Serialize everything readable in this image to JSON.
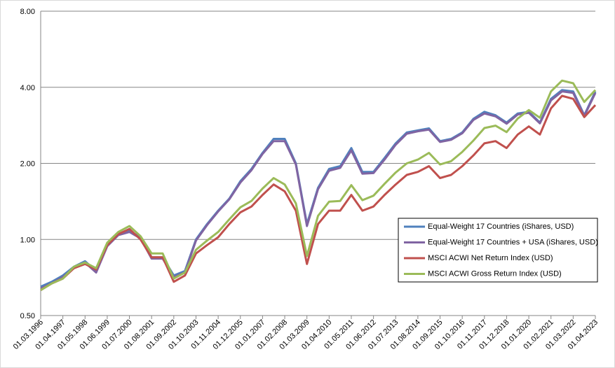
{
  "chart_data": {
    "type": "line",
    "log_scale": true,
    "grid": true,
    "legend_position": "center right",
    "categories": [
      "01.03.1996",
      null,
      "01.04.1997",
      null,
      "01.05.1998",
      null,
      "01.06.1999",
      null,
      "01.07.2000",
      null,
      "01.08.2001",
      null,
      "01.09.2002",
      null,
      "01.10.2003",
      null,
      "01.11.2004",
      null,
      "01.12.2005",
      null,
      "01.01.2007",
      null,
      "01.02.2008",
      null,
      "01.03.2009",
      null,
      "01.04.2010",
      null,
      "01.05.2011",
      null,
      "01.06.2012",
      null,
      "01.07.2013",
      null,
      "01.08.2014",
      null,
      "01.09.2015",
      null,
      "01.10.2016",
      null,
      "01.11.2017",
      null,
      "01.12.2018",
      null,
      "01.01.2020",
      null,
      "01.02.2021",
      null,
      "01.03.2022",
      null,
      "01.04.2023"
    ],
    "ylim": [
      0.5,
      8
    ],
    "yticks": [
      {
        "value": 0.5,
        "label": "0.50"
      },
      {
        "value": 1,
        "label": "1.00"
      },
      {
        "value": 2,
        "label": "2.00"
      },
      {
        "value": 4,
        "label": "4.00"
      },
      {
        "value": 8,
        "label": "8.00"
      }
    ],
    "series": [
      {
        "name": "Equal-Weight 17 Countries  (iShares, USD)",
        "color": "#4f81bd",
        "values": [
          0.65,
          0.68,
          0.72,
          0.78,
          0.82,
          0.75,
          0.95,
          1.05,
          1.08,
          1.02,
          0.85,
          0.85,
          0.72,
          0.75,
          1.0,
          1.15,
          1.3,
          1.45,
          1.7,
          1.9,
          2.2,
          2.5,
          2.5,
          2.0,
          1.15,
          1.6,
          1.9,
          1.95,
          2.3,
          1.85,
          1.85,
          2.1,
          2.4,
          2.65,
          2.7,
          2.75,
          2.45,
          2.5,
          2.65,
          3.0,
          3.2,
          3.1,
          2.9,
          3.15,
          3.2,
          2.9,
          3.6,
          3.9,
          3.85,
          3.1,
          3.85
        ]
      },
      {
        "name": "Equal-Weight 17 Countries  + USA (iShares, USD)",
        "color": "#8064a2",
        "values": [
          0.64,
          0.67,
          0.71,
          0.77,
          0.81,
          0.74,
          0.94,
          1.04,
          1.07,
          1.01,
          0.84,
          0.84,
          0.71,
          0.74,
          0.99,
          1.14,
          1.29,
          1.44,
          1.68,
          1.88,
          2.18,
          2.45,
          2.45,
          1.98,
          1.13,
          1.58,
          1.87,
          1.92,
          2.25,
          1.82,
          1.83,
          2.07,
          2.37,
          2.62,
          2.68,
          2.72,
          2.43,
          2.48,
          2.63,
          2.97,
          3.15,
          3.07,
          2.87,
          3.12,
          3.17,
          2.88,
          3.55,
          3.85,
          3.8,
          3.08,
          3.8
        ]
      },
      {
        "name": "MSCI ACWI Net Return Index (USD)",
        "color": "#c0504d",
        "values": [
          0.63,
          0.67,
          0.7,
          0.77,
          0.8,
          0.76,
          0.95,
          1.05,
          1.1,
          1.0,
          0.85,
          0.85,
          0.68,
          0.72,
          0.88,
          0.95,
          1.02,
          1.15,
          1.28,
          1.35,
          1.5,
          1.65,
          1.55,
          1.3,
          0.8,
          1.15,
          1.3,
          1.3,
          1.5,
          1.3,
          1.35,
          1.5,
          1.65,
          1.8,
          1.85,
          1.95,
          1.75,
          1.8,
          1.95,
          2.15,
          2.4,
          2.45,
          2.3,
          2.6,
          2.8,
          2.6,
          3.3,
          3.7,
          3.6,
          3.05,
          3.4
        ]
      },
      {
        "name": "MSCI ACWI Gross Return Index (USD)",
        "color": "#9bbb59",
        "values": [
          0.63,
          0.67,
          0.7,
          0.78,
          0.81,
          0.77,
          0.97,
          1.07,
          1.13,
          1.03,
          0.88,
          0.88,
          0.7,
          0.74,
          0.91,
          0.99,
          1.07,
          1.2,
          1.34,
          1.42,
          1.59,
          1.75,
          1.65,
          1.39,
          0.86,
          1.24,
          1.41,
          1.42,
          1.64,
          1.43,
          1.49,
          1.66,
          1.84,
          2.0,
          2.07,
          2.2,
          1.98,
          2.04,
          2.22,
          2.46,
          2.76,
          2.82,
          2.66,
          3.01,
          3.25,
          3.03,
          3.85,
          4.25,
          4.15,
          3.5,
          3.9
        ]
      }
    ]
  }
}
